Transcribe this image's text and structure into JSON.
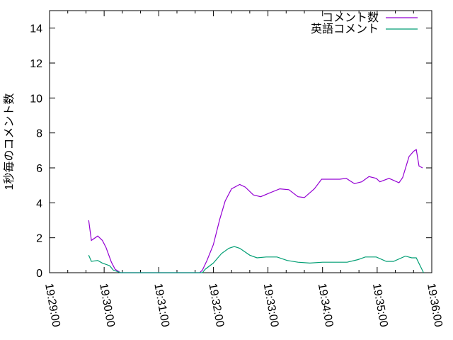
{
  "chart_data": {
    "type": "line",
    "title": "",
    "xlabel": "",
    "ylabel": "1秒毎のコメント数",
    "xlim": [
      "19:29:00",
      "19:36:00"
    ],
    "ylim": [
      0,
      15
    ],
    "xticks": [
      "19:29:00",
      "19:30:00",
      "19:31:00",
      "19:32:00",
      "19:33:00",
      "19:34:00",
      "19:35:00",
      "19:36:00"
    ],
    "yticks": [
      "0",
      "2",
      "4",
      "6",
      "8",
      "10",
      "12",
      "14"
    ],
    "grid": false,
    "legend_position": "top-right",
    "series": [
      {
        "name": "コメント数",
        "color": "#9400d3",
        "points": [
          [
            "19:29:43",
            3.0
          ],
          [
            "19:29:46",
            1.85
          ],
          [
            "19:29:53",
            2.1
          ],
          [
            "19:29:58",
            1.85
          ],
          [
            "19:30:02",
            1.45
          ],
          [
            "19:30:08",
            0.6
          ],
          [
            "19:30:12",
            0.2
          ],
          [
            "19:30:18",
            0
          ],
          [
            "19:31:45",
            0
          ],
          [
            "19:31:48",
            0.15
          ],
          [
            "19:31:53",
            0.7
          ],
          [
            "19:32:00",
            1.6
          ],
          [
            "19:32:07",
            3.05
          ],
          [
            "19:32:13",
            4.1
          ],
          [
            "19:32:20",
            4.8
          ],
          [
            "19:32:29",
            5.05
          ],
          [
            "19:32:35",
            4.9
          ],
          [
            "19:32:44",
            4.45
          ],
          [
            "19:32:52",
            4.35
          ],
          [
            "19:33:01",
            4.55
          ],
          [
            "19:33:13",
            4.8
          ],
          [
            "19:33:23",
            4.75
          ],
          [
            "19:33:33",
            4.35
          ],
          [
            "19:33:40",
            4.3
          ],
          [
            "19:33:51",
            4.8
          ],
          [
            "19:33:59",
            5.35
          ],
          [
            "19:34:19",
            5.35
          ],
          [
            "19:34:26",
            5.4
          ],
          [
            "19:34:35",
            5.1
          ],
          [
            "19:34:43",
            5.2
          ],
          [
            "19:34:51",
            5.5
          ],
          [
            "19:34:59",
            5.4
          ],
          [
            "19:35:03",
            5.2
          ],
          [
            "19:35:13",
            5.4
          ],
          [
            "19:35:24",
            5.15
          ],
          [
            "19:35:28",
            5.45
          ],
          [
            "19:35:35",
            6.65
          ],
          [
            "19:35:40",
            6.95
          ],
          [
            "19:35:43",
            7.05
          ],
          [
            "19:35:46",
            6.1
          ],
          [
            "19:35:50",
            6.0
          ]
        ]
      },
      {
        "name": "英語コメント",
        "color": "#009e73",
        "points": [
          [
            "19:29:43",
            1.0
          ],
          [
            "19:29:46",
            0.65
          ],
          [
            "19:29:53",
            0.7
          ],
          [
            "19:29:58",
            0.55
          ],
          [
            "19:30:06",
            0.4
          ],
          [
            "19:30:10",
            0.15
          ],
          [
            "19:30:18",
            0
          ],
          [
            "19:31:48",
            0
          ],
          [
            "19:31:51",
            0.2
          ],
          [
            "19:32:00",
            0.55
          ],
          [
            "19:32:09",
            1.1
          ],
          [
            "19:32:17",
            1.4
          ],
          [
            "19:32:23",
            1.5
          ],
          [
            "19:32:29",
            1.4
          ],
          [
            "19:32:40",
            1.0
          ],
          [
            "19:32:48",
            0.85
          ],
          [
            "19:32:58",
            0.9
          ],
          [
            "19:33:10",
            0.9
          ],
          [
            "19:33:21",
            0.7
          ],
          [
            "19:33:33",
            0.6
          ],
          [
            "19:33:46",
            0.55
          ],
          [
            "19:34:00",
            0.6
          ],
          [
            "19:34:27",
            0.6
          ],
          [
            "19:34:39",
            0.75
          ],
          [
            "19:34:47",
            0.9
          ],
          [
            "19:34:59",
            0.9
          ],
          [
            "19:35:10",
            0.65
          ],
          [
            "19:35:18",
            0.65
          ],
          [
            "19:35:31",
            0.95
          ],
          [
            "19:35:38",
            0.85
          ],
          [
            "19:35:43",
            0.85
          ],
          [
            "19:35:51",
            0
          ]
        ]
      }
    ]
  }
}
